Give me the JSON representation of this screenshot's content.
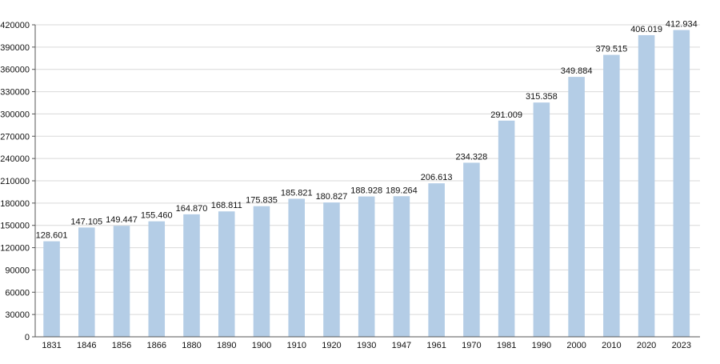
{
  "chart_data": {
    "type": "bar",
    "title": "",
    "xlabel": "",
    "ylabel": "",
    "categories": [
      "1831",
      "1846",
      "1856",
      "1866",
      "1880",
      "1890",
      "1900",
      "1910",
      "1920",
      "1930",
      "1947",
      "1961",
      "1970",
      "1981",
      "1990",
      "2000",
      "2010",
      "2020",
      "2023"
    ],
    "values": [
      128601,
      147105,
      149447,
      155460,
      164870,
      168811,
      175835,
      185821,
      180827,
      188928,
      189264,
      206613,
      234328,
      291009,
      315358,
      349884,
      379515,
      406019,
      412934
    ],
    "data_labels": [
      "128.601",
      "147.105",
      "149.447",
      "155.460",
      "164.870",
      "168.811",
      "175.835",
      "185.821",
      "180.827",
      "188.928",
      "189.264",
      "206.613",
      "234.328",
      "291.009",
      "315.358",
      "349.884",
      "379.515",
      "406.019",
      "412.934"
    ],
    "ylim": [
      0,
      420000
    ],
    "yticks": [
      0,
      30000,
      60000,
      90000,
      120000,
      150000,
      180000,
      210000,
      240000,
      270000,
      300000,
      330000,
      360000,
      390000,
      420000
    ],
    "grid": true,
    "legend": "none",
    "colors": {
      "bar": "#b4cde6",
      "grid": "#d9d9d9",
      "axis": "#555555",
      "text": "#111111"
    }
  }
}
